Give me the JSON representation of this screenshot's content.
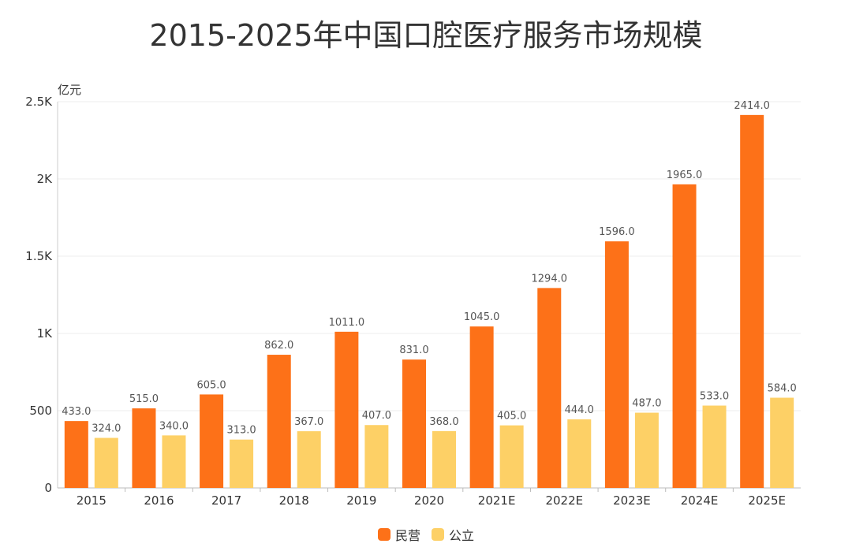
{
  "chart_data": {
    "type": "bar",
    "title": "2015-2025年中国口腔医疗服务市场规模",
    "ylabel": "亿元",
    "ylim": [
      0,
      2500
    ],
    "yticks": [
      "0",
      "500",
      "1K",
      "1.5K",
      "2K",
      "2.5K"
    ],
    "ytick_values": [
      0,
      500,
      1000,
      1500,
      2000,
      2500
    ],
    "categories": [
      "2015",
      "2016",
      "2017",
      "2018",
      "2019",
      "2020",
      "2021E",
      "2022E",
      "2023E",
      "2024E",
      "2025E"
    ],
    "series": [
      {
        "name": "民营",
        "color": "#fd7118",
        "values": [
          433.0,
          515.0,
          605.0,
          862.0,
          1011.0,
          831.0,
          1045.0,
          1294.0,
          1596.0,
          1965.0,
          2414.0
        ]
      },
      {
        "name": "公立",
        "color": "#fdd066",
        "values": [
          324.0,
          340.0,
          313.0,
          367.0,
          407.0,
          368.0,
          405.0,
          444.0,
          487.0,
          533.0,
          584.0
        ]
      }
    ],
    "data_labels": true,
    "grid": true,
    "legend_position": "bottom-center"
  }
}
